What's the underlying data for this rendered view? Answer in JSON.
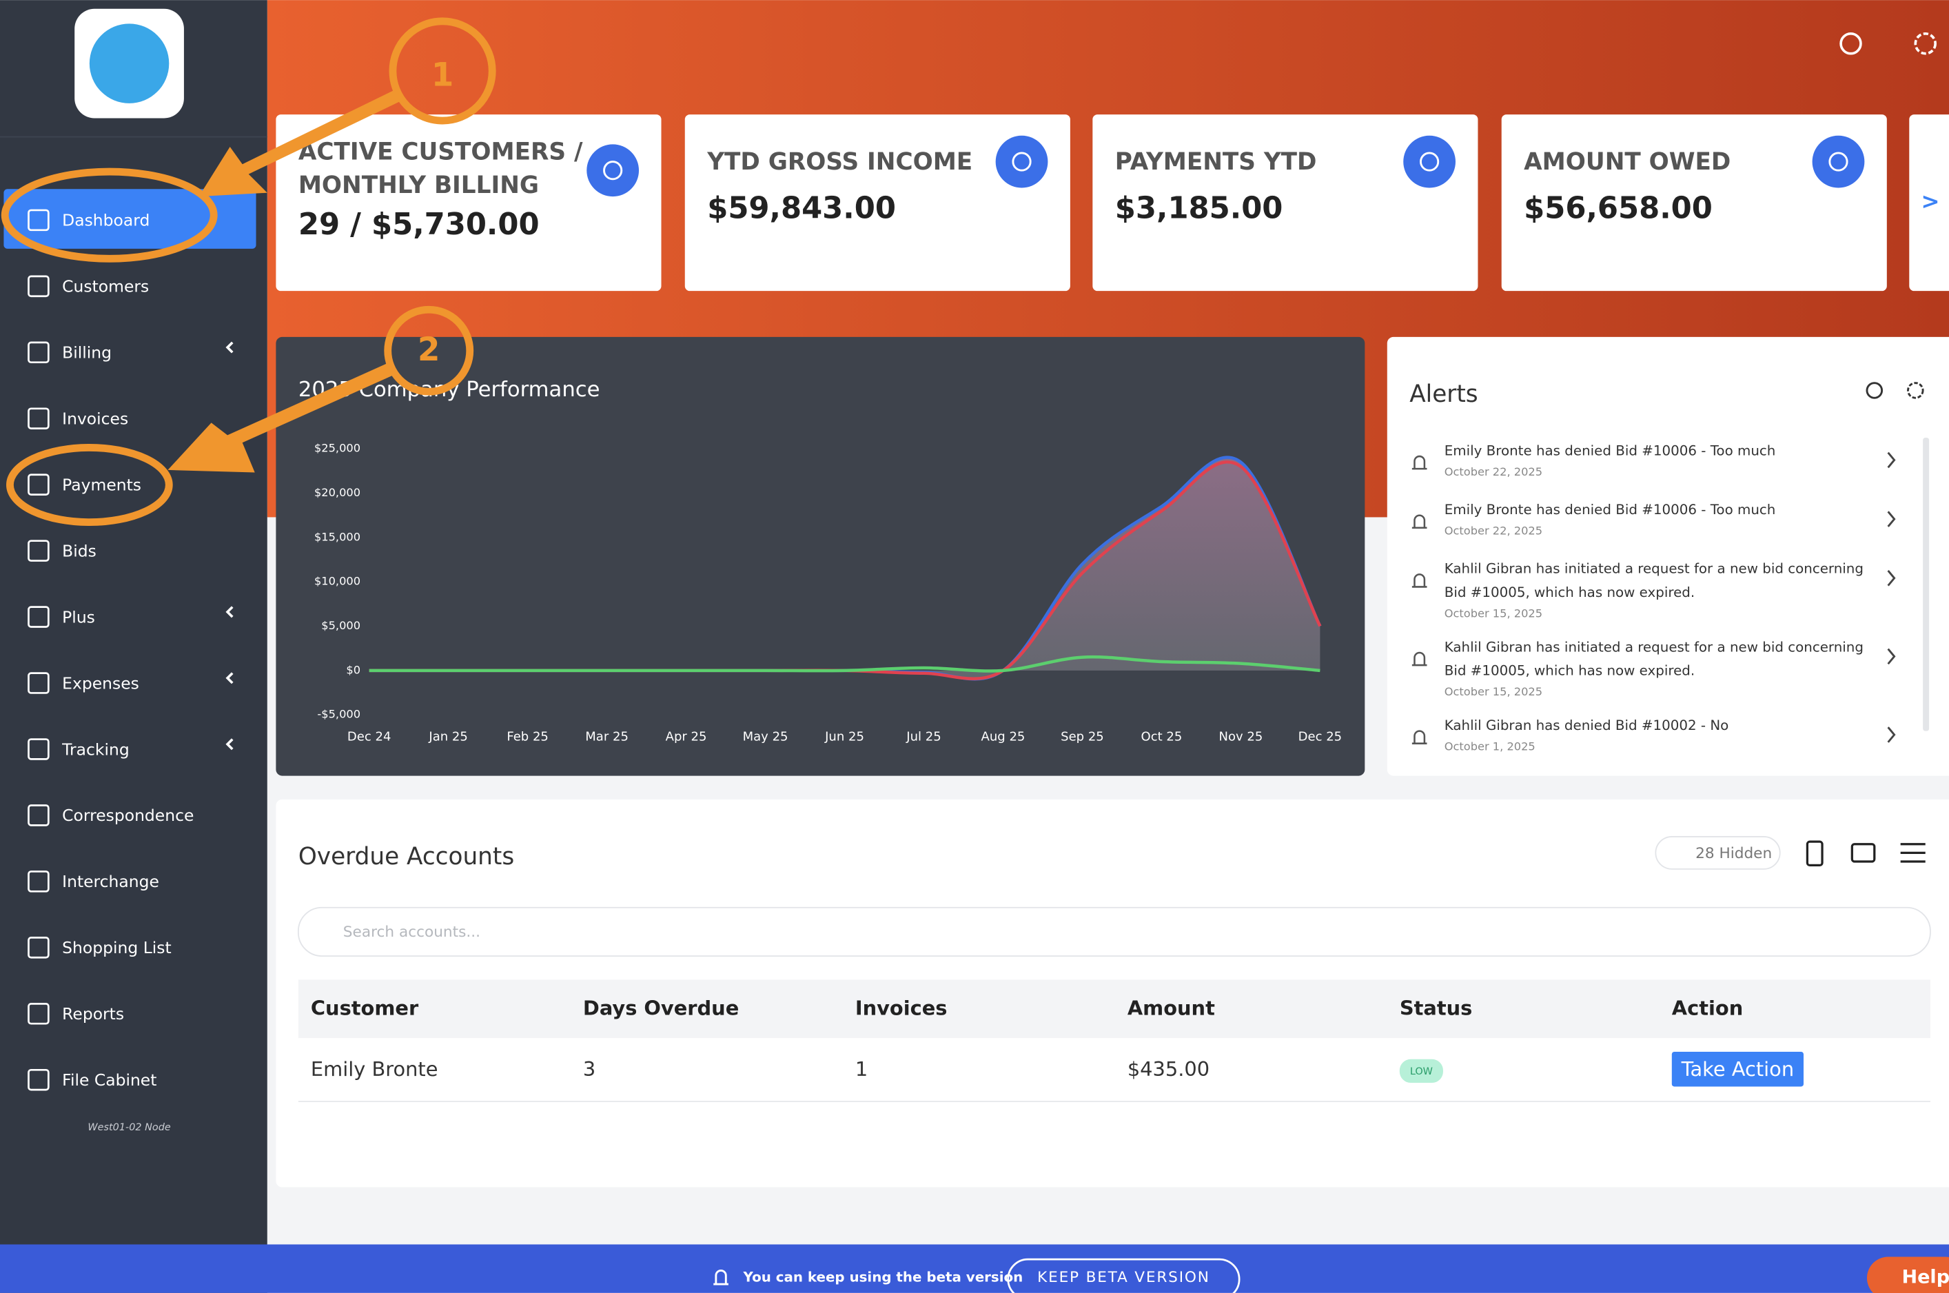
{
  "sidebar": {
    "menu": [
      "Dashboard",
      "Customers",
      "Billing",
      "Invoices",
      "Payments",
      "Bids",
      "Plus",
      "Expenses",
      "Tracking",
      "Correspondence",
      "Interchange",
      "Shopping List",
      "Reports",
      "File Cabinet"
    ],
    "node": "West01-02 Node"
  },
  "annotations": [
    "1",
    "2"
  ],
  "cards": [
    {
      "title": [
        "ACTIVE CUSTOMERS /",
        "MONTHLY BILLING"
      ],
      "value": "29 / $5,730.00"
    },
    {
      "title": [
        "YTD GROSS INCOME"
      ],
      "value": "$59,843.00"
    },
    {
      "title": [
        "PAYMENTS YTD"
      ],
      "value": "$3,185.00"
    },
    {
      "title": [
        "AMOUNT OWED"
      ],
      "value": "$56,658.00"
    }
  ],
  "cards_next": ">",
  "chart_data": {
    "type": "line",
    "title": "2025 Company Performance",
    "categories": [
      "Dec 24",
      "Jan 25",
      "Feb 25",
      "Mar 25",
      "Apr 25",
      "May 25",
      "Jun 25",
      "Jul 25",
      "Aug 25",
      "Sep 25",
      "Oct 25",
      "Nov 25",
      "Dec 25"
    ],
    "series": [
      {
        "color": "#3b6fe0",
        "values": [
          0,
          0,
          0,
          0,
          0,
          0,
          0,
          -200,
          0,
          12000,
          18500,
          23500,
          5000
        ]
      },
      {
        "color": "#e0424f",
        "values": [
          0,
          0,
          0,
          0,
          0,
          0,
          0,
          -300,
          0,
          11000,
          18000,
          23000,
          5000
        ]
      },
      {
        "color": "#5ccf6e",
        "values": [
          0,
          0,
          0,
          0,
          0,
          0,
          0,
          300,
          0,
          1500,
          1000,
          800,
          0
        ]
      }
    ],
    "ylim": [
      -5000,
      25000
    ],
    "yticks": [
      {
        "value": -5000,
        "label": "-$5,000"
      },
      {
        "value": 0,
        "label": "$0"
      },
      {
        "value": 5000,
        "label": "$5,000"
      },
      {
        "value": 10000,
        "label": "$10,000"
      },
      {
        "value": 15000,
        "label": "$15,000"
      },
      {
        "value": 20000,
        "label": "$20,000"
      },
      {
        "value": 25000,
        "label": "$25,000"
      }
    ]
  },
  "alerts": {
    "title": "Alerts",
    "items": [
      {
        "text": [
          "Emily Bronte has denied Bid #10006 - Too much"
        ],
        "date": "October 22, 2025"
      },
      {
        "text": [
          "Emily Bronte has denied Bid #10006 - Too much"
        ],
        "date": "October 22, 2025"
      },
      {
        "text": [
          "Kahlil Gibran has initiated a request for a new bid concerning",
          "Bid #10005, which has now expired."
        ],
        "date": "October 15, 2025"
      },
      {
        "text": [
          "Kahlil Gibran has initiated a request for a new bid concerning",
          "Bid #10005, which has now expired."
        ],
        "date": "October 15, 2025"
      },
      {
        "text": [
          "Kahlil Gibran has denied Bid #10002 - No"
        ],
        "date": "October 1, 2025"
      }
    ]
  },
  "overdue": {
    "title": "Overdue Accounts",
    "hidden": "28 Hidden",
    "search": "Search accounts...",
    "columns": [
      "Customer",
      "Days Overdue",
      "Invoices",
      "Amount",
      "Status",
      "Action"
    ],
    "rows": [
      [
        "Emily Bronte",
        3,
        1,
        "$435.00",
        "LOW",
        "Take Action"
      ]
    ]
  },
  "footer": {
    "message": "You can keep using the beta version",
    "button": "KEEP BETA VERSION",
    "help": "Help"
  }
}
